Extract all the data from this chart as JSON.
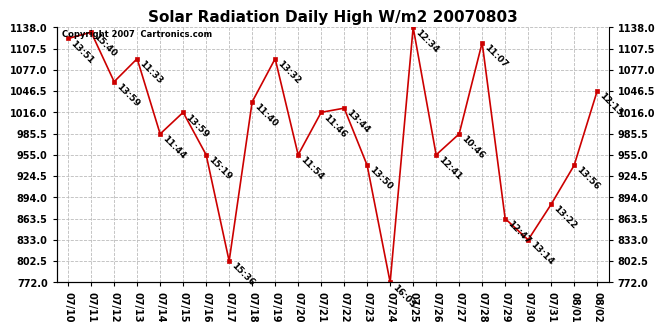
{
  "title": "Solar Radiation Daily High W/m2 20070803",
  "copyright": "Copyright 2007  Cartronics.com",
  "dates": [
    "07/10",
    "07/11",
    "07/12",
    "07/13",
    "07/14",
    "07/15",
    "07/16",
    "07/17",
    "07/18",
    "07/19",
    "07/20",
    "07/21",
    "07/22",
    "07/23",
    "07/24",
    "07/25",
    "07/26",
    "07/27",
    "07/28",
    "07/29",
    "07/30",
    "07/31",
    "08/01",
    "08/02"
  ],
  "values": [
    1122,
    1131,
    1060,
    1093,
    985,
    1016,
    955,
    802.5,
    1031,
    1093,
    955,
    1016,
    1022,
    940,
    772,
    1138,
    955,
    985,
    1116,
    863.5,
    833,
    884,
    940,
    1046.5
  ],
  "labels": [
    "13:51",
    "15:40",
    "13:59",
    "11:33",
    "11:44",
    "13:59",
    "15:19",
    "15:36",
    "11:40",
    "13:32",
    "11:54",
    "11:46",
    "13:44",
    "13:50",
    "16:03",
    "12:34",
    "12:41",
    "10:46",
    "11:07",
    "12:47",
    "13:14",
    "13:22",
    "13:56",
    "12:13"
  ],
  "ylim": [
    772.0,
    1138.0
  ],
  "yticks": [
    772.0,
    802.5,
    833.0,
    863.5,
    894.0,
    924.5,
    955.0,
    985.5,
    1016.0,
    1046.5,
    1077.0,
    1107.5,
    1138.0
  ],
  "line_color": "#cc0000",
  "marker_color": "#cc0000",
  "bg_color": "#ffffff",
  "grid_color": "#bbbbbb",
  "title_fontsize": 11,
  "tick_fontsize": 7,
  "label_fontsize": 6.5
}
